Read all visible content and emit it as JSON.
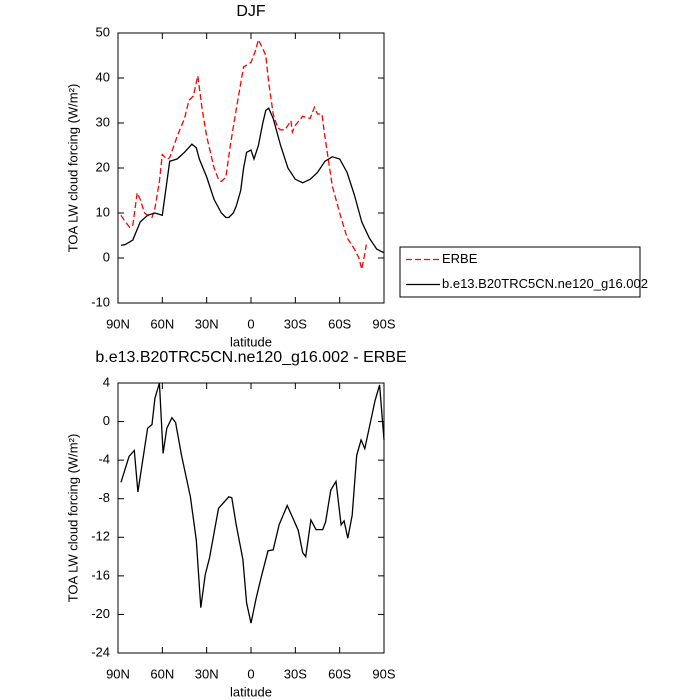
{
  "chart_data": [
    {
      "type": "line",
      "title": "DJF",
      "x_label": "latitude",
      "y_label": "TOA LW cloud forcing (W/m²)",
      "xlim": [
        90,
        -90
      ],
      "xticks": [
        {
          "value": 90,
          "label": "90N"
        },
        {
          "value": 60,
          "label": "60N"
        },
        {
          "value": 30,
          "label": "30N"
        },
        0,
        {
          "value": -30,
          "label": "30S"
        },
        {
          "value": -60,
          "label": "60S"
        },
        {
          "value": -90,
          "label": "90S"
        }
      ],
      "ylim": [
        -10,
        50
      ],
      "yticks": [
        -10,
        0,
        10,
        20,
        30,
        40,
        50
      ],
      "legend": "outside-right",
      "series": [
        {
          "name": "ERBE",
          "color": "#ff0000",
          "line_style": "dashed",
          "x": [
            88,
            85,
            82,
            80,
            77,
            75,
            72,
            70,
            67,
            65,
            62,
            60,
            57,
            55,
            50,
            45,
            42,
            39,
            36,
            33,
            30,
            25,
            22,
            20,
            17,
            14,
            10,
            5,
            2,
            0,
            -3,
            -5,
            -8,
            -10,
            -12,
            -15,
            -18,
            -20,
            -23,
            -25,
            -27,
            -28,
            -30,
            -35,
            -40,
            -43,
            -45,
            -48,
            -50,
            -55,
            -60,
            -65,
            -70,
            -73,
            -75,
            -77,
            -78
          ],
          "values": [
            9.5,
            8,
            6.8,
            7.3,
            14.5,
            13,
            10,
            9.5,
            9,
            11,
            17,
            23,
            22,
            22.3,
            27,
            31,
            35,
            36,
            40.5,
            33,
            27,
            20,
            17.5,
            17,
            18,
            25,
            33,
            42.5,
            43,
            43.5,
            46,
            48.5,
            46.5,
            45,
            39,
            32,
            29,
            28.5,
            28.5,
            29.5,
            30.5,
            28,
            29.5,
            31.5,
            31,
            33.5,
            32,
            32,
            27,
            16,
            10,
            4.5,
            2,
            0,
            -2.5,
            1,
            3
          ]
        },
        {
          "name": "b.e13.B20TRC5CN.ne120_g16.002",
          "color": "#000000",
          "line_style": "solid",
          "x": [
            88,
            85,
            80,
            75,
            70,
            65,
            60,
            55,
            50,
            45,
            40,
            37,
            35,
            30,
            25,
            20,
            17,
            15,
            12,
            10,
            7,
            5,
            3,
            0,
            -2,
            -5,
            -8,
            -10,
            -12,
            -15,
            -20,
            -25,
            -30,
            -35,
            -40,
            -45,
            -50,
            -55,
            -60,
            -65,
            -70,
            -75,
            -80,
            -85,
            -88,
            -90
          ],
          "values": [
            2.8,
            3,
            4,
            8,
            9.5,
            10,
            9.5,
            21.5,
            22,
            23.5,
            25.3,
            24.5,
            22,
            18,
            13,
            10,
            9,
            9,
            10,
            11.5,
            15,
            20,
            23.5,
            24,
            22,
            25,
            30,
            32.8,
            33.3,
            31,
            25,
            20,
            17.5,
            16.7,
            17.5,
            19,
            21.5,
            22.5,
            22,
            19,
            14,
            8,
            4.5,
            2,
            1.5,
            1.2
          ]
        }
      ]
    },
    {
      "type": "line",
      "title": "b.e13.B20TRC5CN.ne120_g16.002 - ERBE",
      "x_label": "latitude",
      "y_label": "TOA LW cloud forcing (W/m²)",
      "xlim": [
        90,
        -90
      ],
      "xticks": [
        {
          "value": 90,
          "label": "90N"
        },
        {
          "value": 60,
          "label": "60N"
        },
        {
          "value": 30,
          "label": "30N"
        },
        0,
        {
          "value": -30,
          "label": "30S"
        },
        {
          "value": -60,
          "label": "60S"
        },
        {
          "value": -90,
          "label": "90S"
        }
      ],
      "ylim": [
        -24,
        4
      ],
      "yticks": [
        -24,
        -20,
        -16,
        -12,
        -8,
        -4,
        0,
        4
      ],
      "series": [
        {
          "color": "#000000",
          "line_style": "solid",
          "x": [
            88,
            82.5,
            79,
            76.5,
            70,
            67,
            65,
            62,
            59.5,
            57,
            53.5,
            51,
            47,
            41,
            37,
            34,
            31,
            28,
            22,
            15,
            13,
            10,
            5.5,
            3,
            0,
            -3.5,
            -7,
            -11.5,
            -15,
            -19,
            -24.5,
            -28,
            -32,
            -35,
            -37,
            -40.5,
            -44,
            -48.5,
            -50.5,
            -54,
            -57.5,
            -61,
            -63,
            -65.5,
            -68.5,
            -71.5,
            -74.5,
            -77,
            -84,
            -87,
            -90
          ],
          "values": [
            -6.3,
            -3.6,
            -3,
            -7.3,
            -0.7,
            -0.3,
            2.4,
            4,
            -3.3,
            -0.7,
            0.4,
            -0.1,
            -3.5,
            -7.8,
            -12.3,
            -19.3,
            -15.9,
            -14.1,
            -9,
            -7.8,
            -7.9,
            -10.7,
            -14.3,
            -18.8,
            -20.9,
            -18.3,
            -16.1,
            -13.4,
            -13.3,
            -10.7,
            -8.7,
            -9.9,
            -11.3,
            -13.6,
            -14,
            -10.2,
            -11.2,
            -11.2,
            -10.4,
            -7.1,
            -6.2,
            -10.7,
            -10.3,
            -12.1,
            -9.7,
            -3.5,
            -1.9,
            -2.8,
            2.2,
            3.8,
            -1.9
          ]
        }
      ]
    }
  ]
}
